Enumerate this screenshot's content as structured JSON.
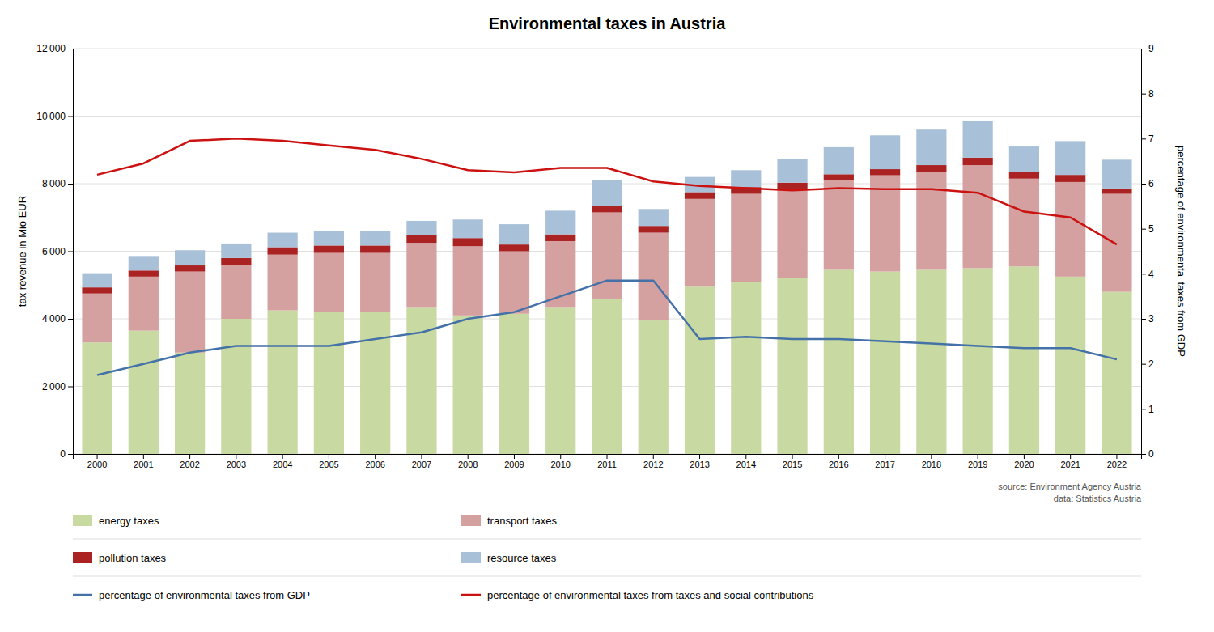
{
  "chart_data": {
    "type": "bar",
    "title": "Environmental taxes in Austria",
    "ylabel": "tax revenue in Mio EUR",
    "y2label": "percentage of environmental taxes from GDP",
    "annotations": [
      "source: Environment Agency Austria",
      "data: Statistics Austria"
    ],
    "categories": [
      "2000",
      "2001",
      "2002",
      "2003",
      "2004",
      "2005",
      "2006",
      "2007",
      "2008",
      "2009",
      "2010",
      "2011",
      "2012",
      "2013",
      "2014",
      "2015",
      "2016",
      "2017",
      "2018",
      "2019",
      "2020",
      "2021",
      "2022"
    ],
    "series": [
      {
        "name": "energy taxes",
        "type": "bar",
        "color": "#c8d9a2",
        "values": [
          3300,
          3650,
          3000,
          4000,
          4250,
          4200,
          4200,
          4350,
          4100,
          4150,
          4350,
          4600,
          3950,
          4950,
          5100,
          5200,
          5450,
          5400,
          5450,
          5500,
          5550,
          5250,
          4800
        ]
      },
      {
        "name": "transport taxes",
        "type": "bar",
        "color": "#d4a0a0",
        "values": [
          1450,
          1600,
          2400,
          1600,
          1650,
          1750,
          1750,
          1900,
          2050,
          1850,
          1950,
          2550,
          2600,
          2600,
          2600,
          2650,
          2650,
          2850,
          2900,
          3050,
          2600,
          2800,
          2900
        ]
      },
      {
        "name": "pollution taxes",
        "type": "bar",
        "color": "#aa2222",
        "values": [
          180,
          180,
          180,
          200,
          220,
          220,
          220,
          230,
          240,
          200,
          200,
          200,
          200,
          200,
          200,
          180,
          180,
          180,
          200,
          220,
          200,
          210,
          160
        ]
      },
      {
        "name": "resource taxes",
        "type": "bar",
        "color": "#a8c0d8",
        "values": [
          420,
          430,
          450,
          430,
          430,
          430,
          430,
          420,
          550,
          600,
          700,
          750,
          500,
          450,
          500,
          700,
          800,
          1000,
          1050,
          1100,
          750,
          1000,
          850
        ]
      },
      {
        "name": "percentage of environmental taxes from GDP",
        "type": "line",
        "axis": "y2",
        "color": "#4472a8",
        "values": [
          1.75,
          2.0,
          2.25,
          2.4,
          2.4,
          2.4,
          2.55,
          2.7,
          3.0,
          3.15,
          3.5,
          3.85,
          3.85,
          2.55,
          2.6,
          2.55,
          2.55,
          2.5,
          2.45,
          2.4,
          2.35,
          2.35,
          2.1
        ]
      },
      {
        "name": "percentage of environmental taxes from taxes and social contributions",
        "type": "line",
        "axis": "y2",
        "color": "#cc1111",
        "values": [
          6.2,
          6.45,
          6.95,
          7.0,
          6.95,
          6.85,
          6.75,
          6.55,
          6.3,
          6.25,
          6.35,
          6.35,
          6.05,
          5.95,
          5.9,
          5.85,
          5.9,
          5.88,
          5.88,
          5.8,
          5.38,
          5.25,
          4.65
        ]
      }
    ],
    "stacked": true,
    "ylim": [
      0,
      12000
    ],
    "yticks": [
      0,
      {
        "value": 2000,
        "label": "2 000"
      },
      {
        "value": 4000,
        "label": "4 000"
      },
      {
        "value": 6000,
        "label": "6 000"
      },
      {
        "value": 8000,
        "label": "8 000"
      },
      {
        "value": 10000,
        "label": "10 000"
      },
      {
        "value": 12000,
        "label": "12 000"
      }
    ],
    "y2lim": [
      0,
      9
    ],
    "y2ticks": [
      0,
      1,
      2,
      3,
      4,
      5,
      6,
      7,
      8,
      9
    ],
    "grid": true,
    "legend": "bottom"
  }
}
